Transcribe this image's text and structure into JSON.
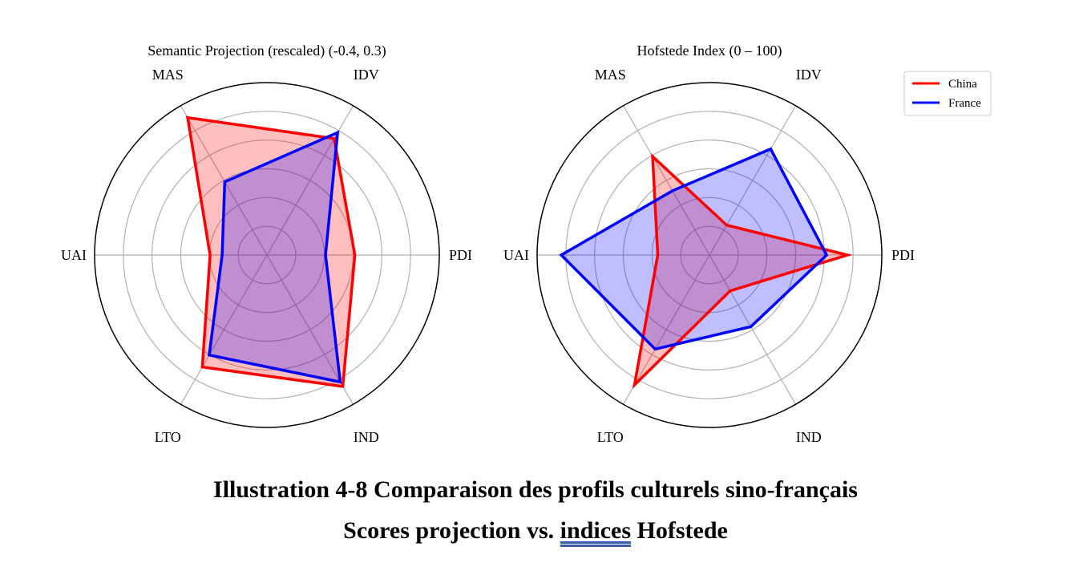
{
  "chart_data": [
    {
      "type": "radar",
      "title": "Semantic Projection (rescaled) (-0.4, 0.3)",
      "axes": [
        "PDI",
        "IDV",
        "MAS",
        "UAI",
        "LTO",
        "IND"
      ],
      "rlim": [
        0,
        1
      ],
      "grid": true,
      "series": [
        {
          "name": "China",
          "color": "#ff0000",
          "fill": "#ff0000",
          "values": [
            0.51,
            0.78,
            0.92,
            0.33,
            0.75,
            0.88
          ]
        },
        {
          "name": "France",
          "color": "#0000ff",
          "fill": "#0000ff",
          "values": [
            0.34,
            0.82,
            0.49,
            0.26,
            0.67,
            0.85
          ]
        }
      ]
    },
    {
      "type": "radar",
      "title": "Hofstede Index (0 – 100)",
      "axes": [
        "PDI",
        "IDV",
        "MAS",
        "UAI",
        "LTO",
        "IND"
      ],
      "rlim": [
        0,
        100
      ],
      "grid": true,
      "legend": {
        "position": "top-right",
        "entries": [
          "China",
          "France"
        ]
      },
      "series": [
        {
          "name": "China",
          "color": "#ff0000",
          "fill": "#ff0000",
          "values": [
            80,
            20,
            66,
            30,
            87,
            24
          ]
        },
        {
          "name": "France",
          "color": "#0000ff",
          "fill": "#0000ff",
          "values": [
            68,
            71,
            43,
            86,
            63,
            48
          ]
        }
      ]
    }
  ],
  "caption": {
    "line1": "Illustration 4-8 Comparaison des profils culturels sino-français",
    "line2_before": "Scores projection vs. ",
    "line2_underlined": "indices",
    "line2_after": " Hofstede"
  }
}
